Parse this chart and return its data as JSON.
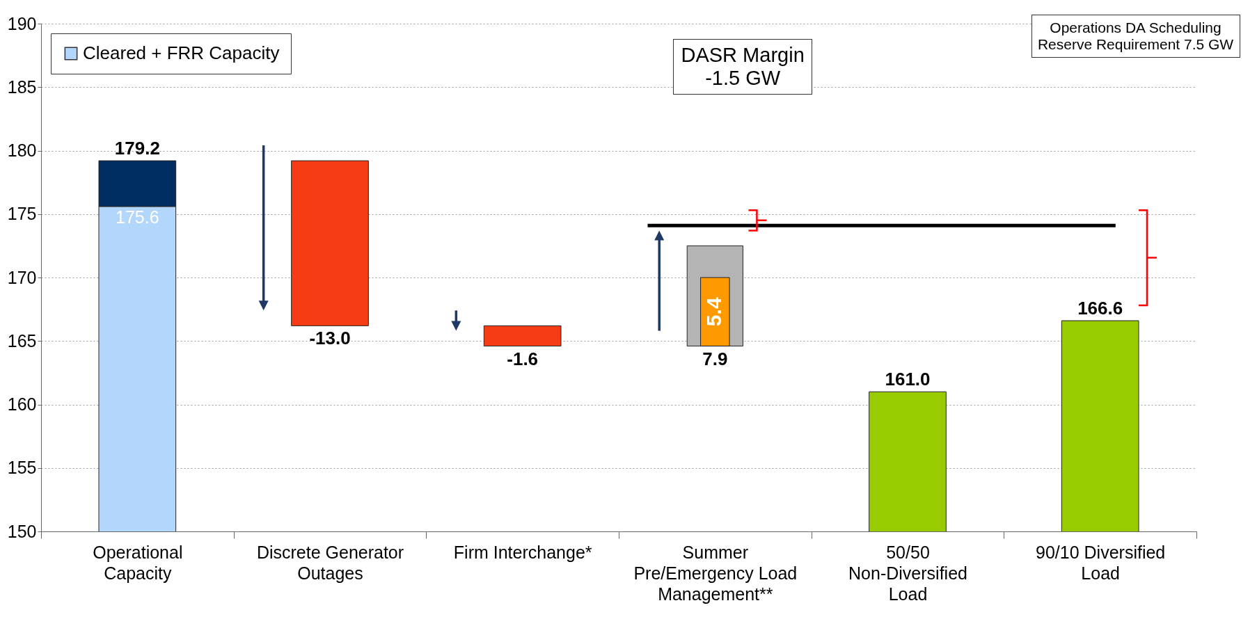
{
  "chart_data": {
    "type": "bar",
    "categories": [
      "Operational Capacity",
      "Discrete Generator Outages",
      "Firm Interchange*",
      "Summer Pre/Emergency Load Management**",
      "50/50 Non-Diversified Load",
      "90/10 Diversified Load"
    ],
    "series": [
      {
        "name": "Cleared + FRR Capacity",
        "color": "#b3d7fc",
        "values": [
          175.6,
          null,
          null,
          null,
          null,
          null
        ],
        "value_labels": [
          "175.6",
          null,
          null,
          null,
          null,
          null
        ]
      },
      {
        "color": "#002d62",
        "base": [
          175.6,
          null,
          null,
          null,
          null,
          null
        ],
        "values": [
          3.6,
          null,
          null,
          null,
          null,
          null
        ],
        "value_labels": [
          "179.2",
          null,
          null,
          null,
          null,
          null
        ]
      },
      {
        "color": "#f63c14",
        "base": [
          null,
          179.2,
          166.2,
          null,
          null,
          null
        ],
        "values": [
          null,
          -13.0,
          -1.6,
          null,
          null,
          null
        ],
        "value_labels": [
          null,
          "-13.0",
          "-1.6",
          null,
          null,
          null
        ]
      },
      {
        "color": "#b4b4b4",
        "base": [
          null,
          null,
          null,
          164.6,
          null,
          null
        ],
        "values": [
          null,
          null,
          null,
          7.9,
          null,
          null
        ],
        "value_labels": [
          null,
          null,
          null,
          "7.9",
          null,
          null
        ]
      },
      {
        "color": "#ff9900",
        "base": [
          null,
          null,
          null,
          164.6,
          null,
          null
        ],
        "values": [
          null,
          null,
          null,
          5.4,
          null,
          null
        ],
        "value_labels": [
          null,
          null,
          null,
          "5.4",
          null,
          null
        ]
      },
      {
        "color": "#99cc00",
        "values": [
          null,
          null,
          null,
          null,
          161.0,
          166.6
        ],
        "value_labels": [
          null,
          null,
          null,
          null,
          "161.0",
          "166.6"
        ]
      }
    ],
    "ylim": [
      150,
      190
    ],
    "yticks": [
      150,
      155,
      160,
      165,
      170,
      175,
      180,
      185,
      190
    ],
    "grid": "y",
    "legend": "top left",
    "ref_lines": [
      {
        "axis": "y",
        "value": 174.1,
        "color": "#000000"
      }
    ],
    "annotations": [
      "DASR Margin -1.5 GW",
      "Operations DA Scheduling Reserve Requirement 7.5 GW"
    ]
  }
}
